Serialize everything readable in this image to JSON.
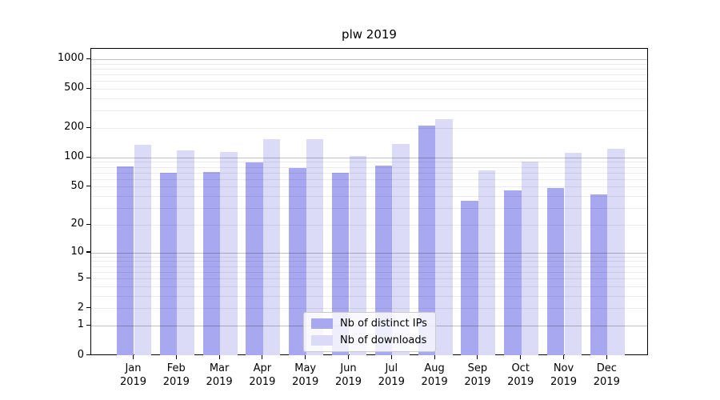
{
  "chart_data": {
    "type": "bar",
    "title": "plw 2019",
    "categories": [
      "Jan",
      "Feb",
      "Mar",
      "Apr",
      "May",
      "Jun",
      "Jul",
      "Aug",
      "Sep",
      "Oct",
      "Nov",
      "Dec"
    ],
    "category_year_line": "2019",
    "series": [
      {
        "name": "Nb of distinct IPs",
        "color": "#a8a8f0",
        "values": [
          81,
          70,
          72,
          89,
          78,
          70,
          84,
          215,
          36,
          46,
          49,
          42
        ]
      },
      {
        "name": "Nb of downloads",
        "color": "#dbdbf8",
        "values": [
          135,
          120,
          114,
          155,
          155,
          105,
          138,
          250,
          75,
          92,
          113,
          123
        ]
      }
    ],
    "yscale": "log1p",
    "ylim": [
      0,
      1285
    ],
    "xlabel": "",
    "ylabel": "",
    "y_ticks": [
      1000,
      500,
      200,
      100,
      50,
      20,
      10,
      5,
      2,
      1,
      0
    ],
    "y_major_gridlines": [
      1,
      10,
      100,
      1000
    ],
    "y_minor_gridlines": [
      2,
      3,
      4,
      5,
      6,
      7,
      8,
      9,
      20,
      30,
      40,
      50,
      60,
      70,
      80,
      90,
      200,
      300,
      400,
      500,
      600,
      700,
      800,
      900
    ],
    "grid": true,
    "legend_position": "lower center inside"
  },
  "colors": {
    "major_grid": "rgba(0,0,0,0.24)",
    "minor_grid": "rgba(0,0,0,0.08)",
    "spine": "#000000",
    "legend_border": "#cbcbcb"
  }
}
